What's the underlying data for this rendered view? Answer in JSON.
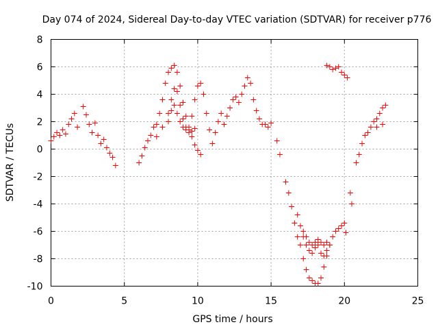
{
  "chart_data": {
    "type": "scatter",
    "title": "Day 074 of 2024, Sidereal Day-to-day VTEC variation (SDTVAR) for receiver p776",
    "xlabel": "GPS time / hours",
    "ylabel": "SDTVAR / TECUs",
    "xlim": [
      0,
      25
    ],
    "ylim": [
      -10,
      8
    ],
    "x_ticks": [
      0,
      5,
      10,
      15,
      20,
      25
    ],
    "x_tick_labels": [
      "0",
      "5",
      "10",
      "15",
      "20",
      "25"
    ],
    "y_ticks": [
      -10,
      -8,
      -6,
      -4,
      -2,
      0,
      2,
      4,
      6,
      8
    ],
    "y_tick_labels": [
      "-10",
      "-8",
      "-6",
      "-4",
      "-2",
      "0",
      "2",
      "4",
      "6",
      "8"
    ],
    "grid": true,
    "legend": "none",
    "marker": "plus",
    "color": "#ff0000",
    "series": [
      {
        "points": [
          [
            0.0,
            0.6
          ],
          [
            0.2,
            0.9
          ],
          [
            0.4,
            1.2
          ],
          [
            0.6,
            1.0
          ],
          [
            0.8,
            1.4
          ],
          [
            1.0,
            1.1
          ],
          [
            1.2,
            1.8
          ],
          [
            1.4,
            2.2
          ],
          [
            1.6,
            2.6
          ],
          [
            1.8,
            1.6
          ],
          [
            2.2,
            3.1
          ],
          [
            2.4,
            2.5
          ],
          [
            2.6,
            1.8
          ],
          [
            2.8,
            1.2
          ],
          [
            3.0,
            1.9
          ],
          [
            3.2,
            1.0
          ],
          [
            3.4,
            0.4
          ],
          [
            3.6,
            0.7
          ],
          [
            3.8,
            0.1
          ],
          [
            4.0,
            -0.3
          ],
          [
            4.2,
            -0.6
          ],
          [
            4.4,
            -1.2
          ],
          [
            6.0,
            -1.0
          ],
          [
            6.2,
            -0.5
          ],
          [
            6.4,
            0.1
          ],
          [
            6.6,
            0.6
          ],
          [
            6.8,
            1.0
          ],
          [
            7.0,
            1.6
          ],
          [
            7.2,
            1.8
          ],
          [
            7.4,
            2.6
          ],
          [
            7.6,
            3.6
          ],
          [
            7.8,
            4.8
          ],
          [
            8.0,
            5.6
          ],
          [
            8.2,
            5.9
          ],
          [
            8.4,
            6.1
          ],
          [
            8.6,
            5.6
          ],
          [
            8.8,
            4.6
          ],
          [
            9.0,
            3.4
          ],
          [
            9.2,
            2.4
          ],
          [
            9.4,
            1.4
          ],
          [
            9.6,
            0.9
          ],
          [
            9.8,
            0.3
          ],
          [
            10.0,
            -0.1
          ],
          [
            10.2,
            -0.4
          ],
          [
            7.2,
            0.9
          ],
          [
            7.6,
            1.6
          ],
          [
            8.0,
            2.6
          ],
          [
            8.2,
            3.6
          ],
          [
            8.4,
            4.4
          ],
          [
            8.6,
            4.2
          ],
          [
            8.8,
            3.2
          ],
          [
            9.0,
            2.2
          ],
          [
            9.2,
            1.6
          ],
          [
            9.4,
            1.2
          ],
          [
            9.6,
            1.3
          ],
          [
            9.8,
            1.5
          ],
          [
            8.0,
            2.0
          ],
          [
            8.2,
            2.8
          ],
          [
            8.4,
            3.2
          ],
          [
            8.6,
            2.6
          ],
          [
            8.8,
            2.0
          ],
          [
            9.0,
            1.6
          ],
          [
            9.2,
            1.4
          ],
          [
            9.4,
            1.6
          ],
          [
            9.6,
            2.4
          ],
          [
            9.8,
            3.6
          ],
          [
            10.0,
            4.6
          ],
          [
            10.2,
            4.8
          ],
          [
            10.4,
            4.0
          ],
          [
            10.6,
            2.6
          ],
          [
            10.8,
            1.4
          ],
          [
            11.0,
            0.4
          ],
          [
            11.2,
            1.2
          ],
          [
            11.4,
            2.0
          ],
          [
            11.6,
            2.6
          ],
          [
            11.8,
            1.8
          ],
          [
            12.0,
            2.4
          ],
          [
            12.2,
            3.0
          ],
          [
            12.4,
            3.6
          ],
          [
            12.6,
            3.8
          ],
          [
            12.8,
            3.4
          ],
          [
            13.0,
            4.0
          ],
          [
            13.2,
            4.6
          ],
          [
            13.4,
            5.2
          ],
          [
            13.6,
            4.8
          ],
          [
            13.8,
            3.6
          ],
          [
            14.0,
            2.8
          ],
          [
            14.2,
            2.2
          ],
          [
            14.4,
            1.8
          ],
          [
            14.6,
            1.8
          ],
          [
            14.8,
            1.6
          ],
          [
            15.0,
            1.9
          ],
          [
            15.4,
            0.6
          ],
          [
            15.6,
            -0.4
          ],
          [
            16.0,
            -2.4
          ],
          [
            16.2,
            -3.2
          ],
          [
            16.4,
            -4.2
          ],
          [
            16.6,
            -5.4
          ],
          [
            16.8,
            -6.4
          ],
          [
            17.0,
            -7.0
          ],
          [
            17.2,
            -8.0
          ],
          [
            17.4,
            -8.8
          ],
          [
            17.6,
            -9.4
          ],
          [
            17.8,
            -9.6
          ],
          [
            18.0,
            -9.8
          ],
          [
            18.2,
            -9.8
          ],
          [
            18.4,
            -9.4
          ],
          [
            18.6,
            -8.6
          ],
          [
            18.8,
            -7.8
          ],
          [
            19.0,
            -7.0
          ],
          [
            19.2,
            -6.4
          ],
          [
            19.4,
            -6.0
          ],
          [
            19.6,
            -5.8
          ],
          [
            19.8,
            -5.6
          ],
          [
            20.0,
            -5.4
          ],
          [
            20.1,
            -6.1
          ],
          [
            16.8,
            -4.8
          ],
          [
            17.0,
            -5.6
          ],
          [
            17.2,
            -6.4
          ],
          [
            17.4,
            -7.0
          ],
          [
            17.6,
            -7.4
          ],
          [
            17.8,
            -7.6
          ],
          [
            18.0,
            -7.2
          ],
          [
            18.2,
            -7.0
          ],
          [
            18.4,
            -7.6
          ],
          [
            18.6,
            -7.8
          ],
          [
            18.8,
            -7.4
          ],
          [
            19.0,
            -7.0
          ],
          [
            17.2,
            -6.0
          ],
          [
            17.4,
            -6.4
          ],
          [
            17.6,
            -6.8
          ],
          [
            17.8,
            -7.0
          ],
          [
            18.0,
            -6.8
          ],
          [
            18.2,
            -6.6
          ],
          [
            18.4,
            -6.8
          ],
          [
            18.6,
            -7.0
          ],
          [
            18.8,
            -6.8
          ],
          [
            18.8,
            6.1
          ],
          [
            19.0,
            6.0
          ],
          [
            19.2,
            5.8
          ],
          [
            19.4,
            5.9
          ],
          [
            19.6,
            6.0
          ],
          [
            19.8,
            5.6
          ],
          [
            20.0,
            5.4
          ],
          [
            20.2,
            5.2
          ],
          [
            20.4,
            -3.2
          ],
          [
            20.5,
            -4.0
          ],
          [
            20.8,
            -1.0
          ],
          [
            21.0,
            -0.4
          ],
          [
            21.2,
            0.4
          ],
          [
            21.4,
            1.0
          ],
          [
            21.6,
            1.2
          ],
          [
            21.8,
            1.6
          ],
          [
            22.0,
            2.0
          ],
          [
            22.2,
            2.2
          ],
          [
            22.4,
            2.6
          ],
          [
            22.6,
            3.0
          ],
          [
            22.8,
            3.2
          ],
          [
            22.6,
            1.8
          ],
          [
            22.2,
            1.6
          ]
        ]
      }
    ]
  }
}
